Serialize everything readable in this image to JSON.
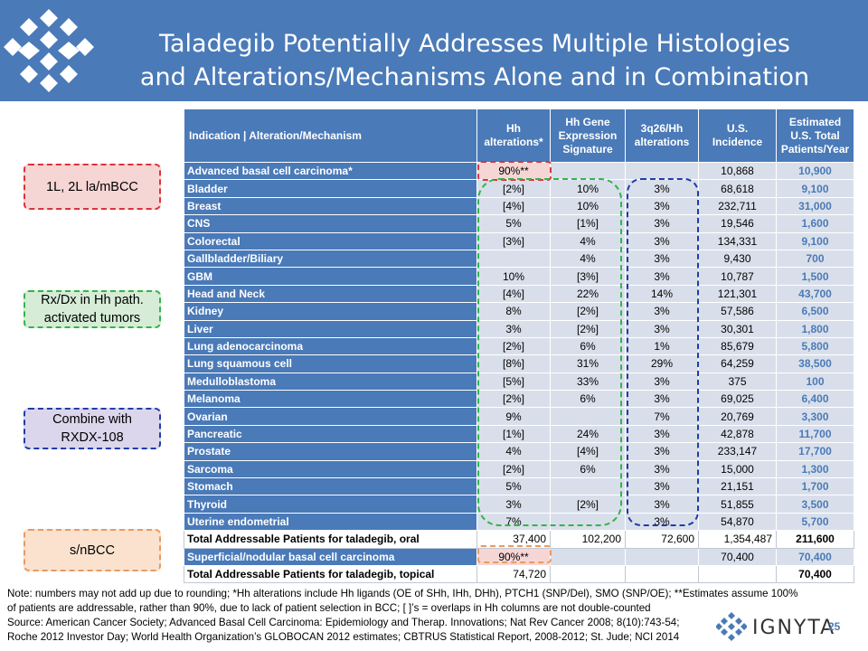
{
  "header": {
    "title_line1": "Taladegib Potentially Addresses Multiple Histologies",
    "title_line2": "and Alterations/Mechanisms Alone and in Combination"
  },
  "colors": {
    "header_blue": "#4a7ab8",
    "row_bg": "#d9dfea",
    "red": "#d9343a",
    "green": "#34b34a",
    "blue": "#1f3da8",
    "orange": "#e89a62"
  },
  "labels": {
    "red": "1L, 2L la/mBCC",
    "green_line1": "Rx/Dx in Hh path.",
    "green_line2": "activated tumors",
    "purple_line1": "Combine with",
    "purple_line2": "RXDX-108",
    "orange": "s/nBCC"
  },
  "table": {
    "headers": [
      "Indication | Alteration/Mechanism",
      "Hh alterations*",
      "Hh Gene Expression Signature",
      "3q26/Hh alterations",
      "U.S. Incidence",
      "Estimated U.S. Total Patients/Year"
    ],
    "rows": [
      [
        "Advanced basal cell carcinoma*",
        "90%**",
        "",
        "",
        "10,868",
        "10,900"
      ],
      [
        "Bladder",
        "[2%]",
        "10%",
        "3%",
        "68,618",
        "9,100"
      ],
      [
        "Breast",
        "[4%]",
        "10%",
        "3%",
        "232,711",
        "31,000"
      ],
      [
        "CNS",
        "5%",
        "[1%]",
        "3%",
        "19,546",
        "1,600"
      ],
      [
        "Colorectal",
        "[3%]",
        "4%",
        "3%",
        "134,331",
        "9,100"
      ],
      [
        "Gallbladder/Biliary",
        "",
        "4%",
        "3%",
        "9,430",
        "700"
      ],
      [
        "GBM",
        "10%",
        "[3%]",
        "3%",
        "10,787",
        "1,500"
      ],
      [
        "Head and Neck",
        "[4%]",
        "22%",
        "14%",
        "121,301",
        "43,700"
      ],
      [
        "Kidney",
        "8%",
        "[2%]",
        "3%",
        "57,586",
        "6,500"
      ],
      [
        "Liver",
        "3%",
        "[2%]",
        "3%",
        "30,301",
        "1,800"
      ],
      [
        "Lung adenocarcinoma",
        "[2%]",
        "6%",
        "1%",
        "85,679",
        "5,800"
      ],
      [
        "Lung squamous cell",
        "[8%]",
        "31%",
        "29%",
        "64,259",
        "38,500"
      ],
      [
        "Medulloblastoma",
        "[5%]",
        "33%",
        "3%",
        "375",
        "100"
      ],
      [
        "Melanoma",
        "[2%]",
        "6%",
        "3%",
        "69,025",
        "6,400"
      ],
      [
        "Ovarian",
        "9%",
        "",
        "7%",
        "20,769",
        "3,300"
      ],
      [
        "Pancreatic",
        "[1%]",
        "24%",
        "3%",
        "42,878",
        "11,700"
      ],
      [
        "Prostate",
        "4%",
        "[4%]",
        "3%",
        "233,147",
        "17,700"
      ],
      [
        "Sarcoma",
        "[2%]",
        "6%",
        "3%",
        "15,000",
        "1,300"
      ],
      [
        "Stomach",
        "5%",
        "",
        "3%",
        "21,151",
        "1,700"
      ],
      [
        "Thyroid",
        "3%",
        "[2%]",
        "3%",
        "51,855",
        "3,500"
      ],
      [
        "Uterine endometrial",
        "7%",
        "",
        "3%",
        "54,870",
        "5,700"
      ]
    ],
    "total_oral": [
      "Total Addressable Patients for taladegib, oral",
      "37,400",
      "102,200",
      "72,600",
      "1,354,487",
      "211,600"
    ],
    "superficial": [
      "Superficial/nodular basal cell carcinoma",
      "90%**",
      "",
      "",
      "70,400",
      "70,400"
    ],
    "total_topical": [
      "Total Addressable Patients for taladegib, topical",
      "74,720",
      "",
      "",
      "",
      "70,400"
    ]
  },
  "footer": {
    "note1": "Note: numbers may not add up due to rounding; *Hh alterations include Hh ligands (OE of SHh, IHh, DHh), PTCH1 (SNP/Del), SMO (SNP/OE); **Estimates assume 100%",
    "note2": "of patients are addressable, rather than 90%, due to lack of patient selection in BCC; [   ]’s = overlaps in Hh columns are not double-counted",
    "source1": "Source: American Cancer Society; Advanced Basal Cell Carcinoma: Epidemiology and Therap. Innovations; Nat Rev Cancer 2008; 8(10):743-54;",
    "source2": "Roche 2012 Investor Day; World Health Organization’s GLOBOCAN 2012 estimates; CBTRUS Statistical Report, 2008-2012; St. Jude; NCI 2014",
    "brand": "IGNYTA",
    "page": "25"
  }
}
